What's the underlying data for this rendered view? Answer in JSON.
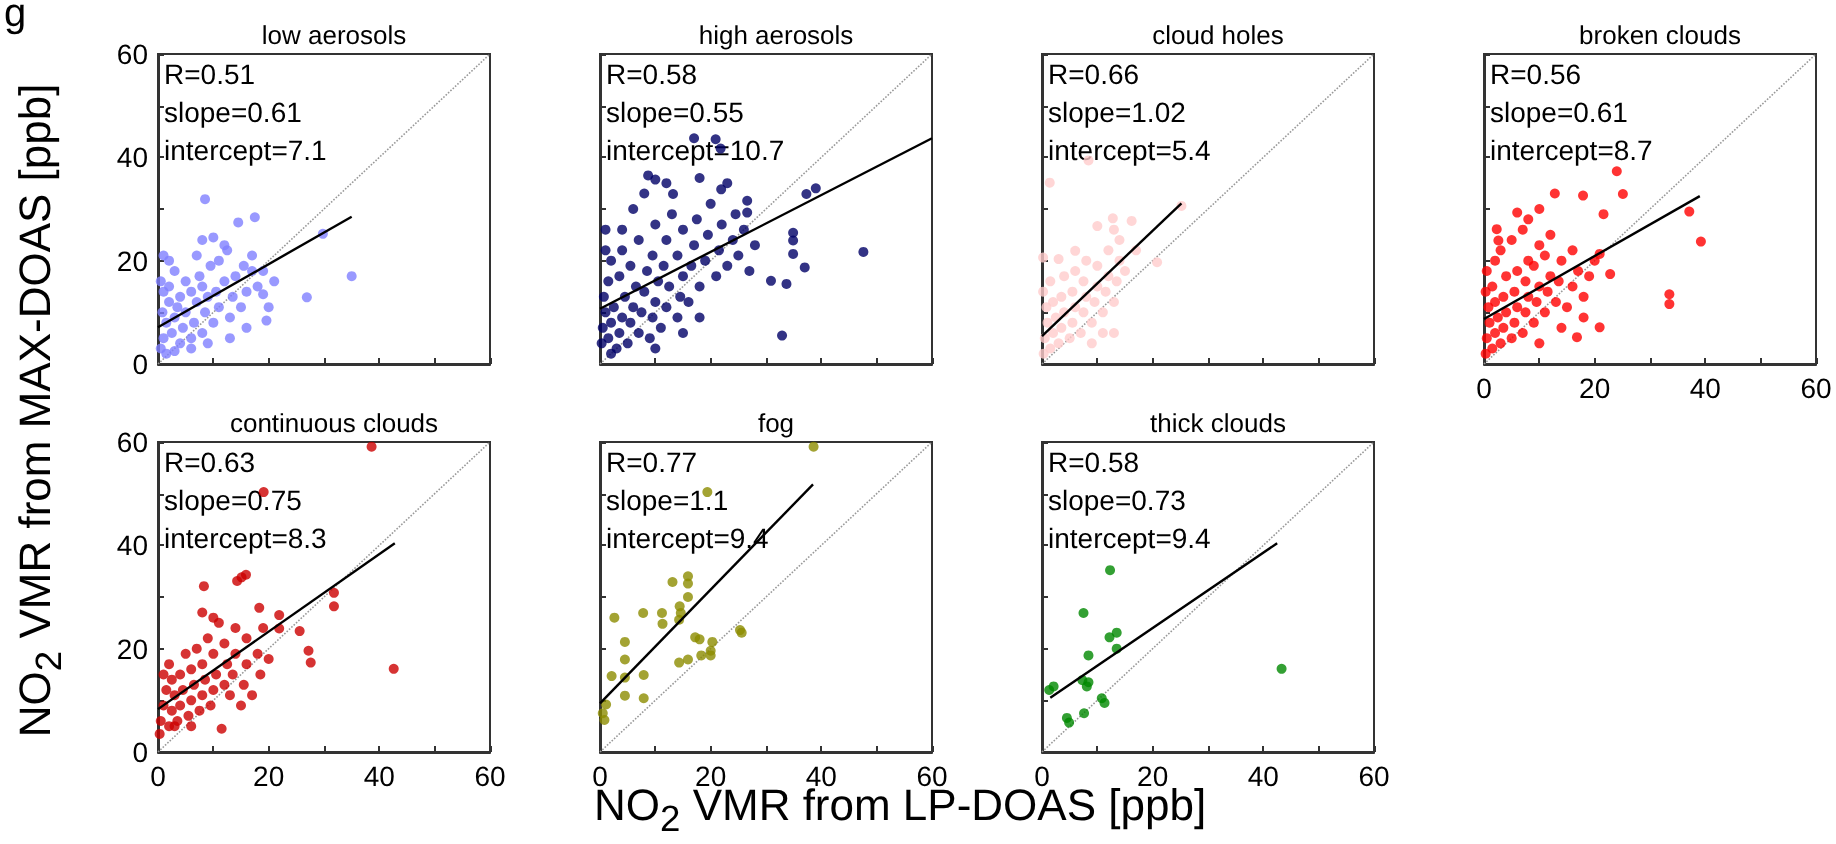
{
  "chart_data": [
    {
      "type": "scatter",
      "title": "low aerosols",
      "ylabel": "NO$_{2}$ VMR from MAX-DOAS [ppb]",
      "annotations": [
        "R=0.51",
        "slope=0.61",
        "intercept=7.1",
        "g"
      ],
      "xlim": [
        0,
        60
      ],
      "ylim": [
        0,
        60
      ],
      "xticks": [
        0,
        {
          "value": 10,
          "label": null
        },
        20,
        {
          "value": 30,
          "label": null
        },
        40,
        {
          "value": 50,
          "label": null
        },
        60
      ],
      "yticks": [
        0,
        {
          "value": 10,
          "label": null
        },
        20,
        {
          "value": 30,
          "label": null
        },
        40,
        {
          "value": 50,
          "label": null
        },
        60
      ],
      "tick_labels": "y",
      "marker": "circle",
      "series": [
        {
          "color": "#8080ff",
          "x": [
            0.5,
            1,
            1.5,
            0.8,
            2,
            1,
            0.5,
            2.5,
            3,
            3.5,
            2,
            4,
            4.5,
            5,
            4,
            5,
            3,
            6,
            6.5,
            7,
            6,
            7.5,
            8,
            8.5,
            9,
            8,
            9.5,
            10,
            11,
            10.5,
            12,
            11,
            13,
            13.5,
            14,
            12.5,
            15,
            16,
            15.5,
            16,
            17,
            18,
            19,
            2,
            1,
            8,
            10,
            8.5,
            14.5,
            17.5,
            29.8,
            35,
            26.9,
            19.6,
            19,
            17,
            1.5,
            3,
            6,
            12,
            7,
            20,
            21,
            13,
            9
          ],
          "values": [
            3,
            5,
            8,
            10,
            12,
            14,
            16,
            6,
            9,
            11,
            15,
            4,
            7,
            10,
            13,
            16,
            18,
            5,
            8,
            12,
            14,
            17,
            6,
            10,
            13,
            15,
            19,
            8,
            11,
            14,
            16,
            20,
            9,
            13,
            17,
            22,
            11,
            14,
            19,
            7,
            21,
            15,
            18,
            20,
            21,
            24,
            24.5,
            31.9,
            27.4,
            28.4,
            25.2,
            17,
            12.9,
            8.4,
            13.5,
            18,
            2,
            2.5,
            3,
            23,
            21,
            11,
            16,
            5,
            4
          ]
        },
        {
          "type": "line",
          "marker": "none",
          "color": "#000000",
          "x": [
            0,
            35
          ],
          "values": [
            7.1,
            28.5
          ]
        },
        {
          "type": "line",
          "marker": "none",
          "color": "#999999",
          "line_style": "dotted",
          "x": [
            0,
            60
          ],
          "values": [
            0,
            60
          ]
        }
      ]
    },
    {
      "type": "scatter",
      "title": "high aerosols",
      "annotations": [
        "R=0.58",
        "slope=0.55",
        "intercept=10.7"
      ],
      "xlim": [
        0,
        60
      ],
      "ylim": [
        0,
        60
      ],
      "xticks": [
        0,
        {
          "value": 10,
          "label": null
        },
        20,
        {
          "value": 30,
          "label": null
        },
        40,
        {
          "value": 50,
          "label": null
        },
        60
      ],
      "yticks": [
        0,
        {
          "value": 10,
          "label": null
        },
        20,
        {
          "value": 30,
          "label": null
        },
        40,
        {
          "value": 50,
          "label": null
        },
        60
      ],
      "tick_labels": false,
      "marker": "circle",
      "series": [
        {
          "color": "#000066",
          "x": [
            0.3,
            0.5,
            1,
            0.7,
            1.5,
            2,
            2.5,
            1.5,
            2,
            1,
            3,
            3.5,
            4,
            4.5,
            3.5,
            4,
            5,
            5.5,
            6,
            6.5,
            5.5,
            7,
            7.5,
            8,
            8.5,
            7,
            9,
            9.5,
            10,
            10.5,
            9.5,
            10,
            11,
            12,
            12.5,
            11.5,
            12,
            13,
            14,
            14.5,
            15,
            14,
            15,
            16,
            16.5,
            17,
            17.5,
            18,
            19,
            19.5,
            20,
            21,
            21.5,
            22,
            23,
            24,
            24.5,
            25,
            26,
            27,
            28,
            6,
            8,
            18,
            21.9,
            20.9,
            21.8,
            17,
            8.7,
            10,
            13.2,
            26.6,
            26.6,
            47.6,
            39,
            37.3,
            34.9,
            34.9,
            34.9,
            37,
            30.9,
            33.7,
            32.9,
            2,
            10,
            15,
            18,
            12,
            23,
            4,
            1
          ],
          "values": [
            4,
            7,
            10,
            13,
            5,
            8,
            11,
            16,
            20,
            22,
            3,
            6,
            9,
            13,
            17,
            22,
            4,
            8,
            11,
            15,
            19,
            6,
            10,
            14,
            18,
            24,
            5,
            9,
            12,
            16,
            21,
            27,
            7,
            11,
            15,
            19,
            24,
            29,
            9,
            13,
            17,
            21,
            26,
            12,
            19,
            23,
            28,
            15,
            20,
            25,
            31,
            17,
            22,
            27,
            19,
            24,
            29,
            21,
            26,
            18,
            23,
            30,
            33,
            36,
            33.8,
            43.5,
            41.7,
            43.7,
            36.5,
            35.7,
            32.9,
            31.6,
            29.3,
            21.7,
            34,
            32.9,
            25.4,
            23.9,
            21.3,
            18.7,
            16.1,
            15.5,
            5.5,
            2,
            3,
            6,
            9,
            35,
            35,
            26,
            26
          ]
        },
        {
          "type": "line",
          "marker": "none",
          "color": "#000000",
          "x": [
            0,
            60
          ],
          "values": [
            10.7,
            43.7
          ]
        },
        {
          "type": "line",
          "marker": "none",
          "color": "#999999",
          "line_style": "dotted",
          "x": [
            0,
            60
          ],
          "values": [
            0,
            60
          ]
        }
      ]
    },
    {
      "type": "scatter",
      "title": "cloud holes",
      "annotations": [
        "R=0.66",
        "slope=1.02",
        "intercept=5.4"
      ],
      "xlim": [
        0,
        60
      ],
      "ylim": [
        0,
        60
      ],
      "xticks": [
        0,
        {
          "value": 10,
          "label": null
        },
        20,
        {
          "value": 30,
          "label": null
        },
        40,
        {
          "value": 50,
          "label": null
        },
        60
      ],
      "yticks": [
        0,
        {
          "value": 10,
          "label": null
        },
        20,
        {
          "value": 30,
          "label": null
        },
        40,
        {
          "value": 50,
          "label": null
        },
        60
      ],
      "tick_labels": false,
      "marker": "circle",
      "series": [
        {
          "color": "#ffcccc",
          "x": [
            0.3,
            0.5,
            1,
            0.8,
            0.2,
            1.5,
            2,
            2.5,
            2,
            1.5,
            3,
            3.5,
            4,
            3.5,
            4,
            5,
            5.5,
            6,
            5.5,
            6,
            7,
            7.5,
            8,
            7.5,
            8,
            9,
            9.5,
            10,
            10,
            11,
            11.5,
            12,
            12,
            13,
            13.5,
            14,
            11,
            13,
            9,
            12.8,
            16.2,
            10,
            6,
            3,
            0.2,
            1.4,
            8.4,
            25.2,
            20.8,
            14,
            17,
            15,
            13
          ],
          "values": [
            2,
            5,
            8,
            11,
            14,
            3,
            6,
            9,
            12,
            16,
            4,
            7,
            10,
            13,
            17,
            5,
            8,
            11,
            14,
            18,
            6,
            10,
            13,
            16,
            20,
            8,
            12,
            15,
            19,
            10,
            14,
            17,
            22,
            12,
            16,
            20,
            6,
            6,
            4,
            28.2,
            27.7,
            26.7,
            21.9,
            20.3,
            20.6,
            35.1,
            39.4,
            30.6,
            19.7,
            24,
            22,
            18,
            26
          ]
        },
        {
          "type": "line",
          "marker": "none",
          "color": "#000000",
          "x": [
            0,
            25.2
          ],
          "values": [
            5.4,
            31.1
          ]
        },
        {
          "type": "line",
          "marker": "none",
          "color": "#999999",
          "line_style": "dotted",
          "x": [
            0,
            60
          ],
          "values": [
            0,
            60
          ]
        }
      ]
    },
    {
      "type": "scatter",
      "title": "broken clouds",
      "annotations": [
        "R=0.56",
        "slope=0.61",
        "intercept=8.7"
      ],
      "xlim": [
        0,
        60
      ],
      "ylim": [
        0,
        60
      ],
      "xticks": [
        0,
        {
          "value": 10,
          "label": null
        },
        20,
        {
          "value": 30,
          "label": null
        },
        40,
        {
          "value": 50,
          "label": null
        },
        60
      ],
      "yticks": [
        0,
        {
          "value": 10,
          "label": null
        },
        20,
        {
          "value": 30,
          "label": null
        },
        40,
        {
          "value": 50,
          "label": null
        },
        60
      ],
      "tick_labels": "x",
      "marker": "circle",
      "series": [
        {
          "color": "#ff0000",
          "x": [
            0.3,
            0.5,
            1,
            0.8,
            0.3,
            0.5,
            1.5,
            2,
            2.5,
            2,
            1.5,
            2,
            3,
            3.5,
            4,
            3.5,
            4,
            3,
            5,
            5.5,
            6,
            5.5,
            6,
            5,
            7,
            7.5,
            8,
            7.5,
            8,
            7,
            9,
            9.5,
            10,
            9,
            10,
            11,
            11.5,
            12,
            11,
            12,
            13,
            13.5,
            14,
            15,
            16,
            16,
            17,
            18,
            19,
            20,
            10,
            14,
            18,
            24,
            25.1,
            12.8,
            17.9,
            21.6,
            6,
            37.1,
            39.2,
            33.5,
            33.5,
            20.9,
            16.8,
            22.8,
            20.9,
            2.3,
            2.6,
            8,
            10
          ],
          "values": [
            2,
            5,
            8,
            11,
            14,
            18,
            3,
            6,
            9,
            12,
            15,
            20,
            4,
            7,
            10,
            13,
            17,
            22,
            5,
            8,
            11,
            14,
            18,
            24,
            6,
            10,
            13,
            16,
            20,
            26,
            8,
            12,
            15,
            19,
            23,
            10,
            14,
            17,
            21,
            25,
            12,
            16,
            20,
            11,
            15,
            22,
            18,
            13,
            17,
            20,
            4,
            7,
            9,
            37.3,
            32.9,
            33,
            32.6,
            29,
            29.3,
            29.5,
            23.7,
            13.5,
            11.6,
            7.1,
            5.2,
            17.4,
            21.3,
            26.1,
            23.9,
            28,
            30
          ]
        },
        {
          "type": "line",
          "marker": "none",
          "color": "#000000",
          "x": [
            0,
            39
          ],
          "values": [
            8.7,
            32.5
          ]
        },
        {
          "type": "line",
          "marker": "none",
          "color": "#999999",
          "line_style": "dotted",
          "x": [
            0,
            60
          ],
          "values": [
            0,
            60
          ]
        }
      ]
    },
    {
      "type": "scatter",
      "title": "continuous clouds",
      "annotations": [
        "R=0.63",
        "slope=0.75",
        "intercept=8.3"
      ],
      "xlim": [
        0,
        60
      ],
      "ylim": [
        0,
        60
      ],
      "xticks": [
        0,
        {
          "value": 10,
          "label": null
        },
        20,
        {
          "value": 30,
          "label": null
        },
        40,
        {
          "value": 50,
          "label": null
        },
        60
      ],
      "yticks": [
        0,
        {
          "value": 10,
          "label": null
        },
        20,
        {
          "value": 30,
          "label": null
        },
        40,
        {
          "value": 50,
          "label": null
        },
        60
      ],
      "marker": "circle",
      "series": [
        {
          "color": "#cc0000",
          "x": [
            0.3,
            0.5,
            1,
            1.5,
            1,
            2,
            2.5,
            3,
            2.5,
            2,
            3.5,
            4,
            4.5,
            4,
            5,
            5.5,
            6,
            6.5,
            6,
            7,
            7.5,
            8,
            8.5,
            8,
            9,
            9.5,
            10,
            10.5,
            10,
            11,
            11.5,
            12,
            12.5,
            12,
            13,
            13.5,
            14,
            14,
            15,
            15.5,
            16,
            16,
            17,
            18,
            18.5,
            19,
            20,
            8,
            10,
            38.6,
            19.1,
            42.6,
            31.8,
            31.8,
            27.6,
            27.2,
            25.6,
            21.9,
            21.9,
            15.1,
            15.9,
            14.3,
            8.3,
            18.3,
            3,
            6
          ],
          "values": [
            3.5,
            6,
            9,
            12,
            15,
            5,
            8,
            11,
            14,
            17,
            6,
            9,
            12,
            15,
            19,
            7,
            10,
            13,
            16,
            20,
            8,
            11,
            14,
            17,
            22,
            9,
            12,
            15,
            19,
            25,
            4.5,
            13,
            17,
            21,
            11,
            15,
            19,
            24,
            9,
            13,
            17,
            22,
            11,
            19,
            15,
            24,
            18,
            27,
            26,
            59.1,
            50.3,
            16.1,
            30.8,
            28.2,
            17.3,
            19.6,
            23.4,
            26.5,
            23.9,
            33.8,
            34.3,
            33.1,
            32.1,
            27.9,
            5,
            5
          ]
        },
        {
          "type": "line",
          "marker": "none",
          "color": "#000000",
          "x": [
            0,
            42.8
          ],
          "values": [
            8.3,
            40.4
          ]
        },
        {
          "type": "line",
          "marker": "none",
          "color": "#999999",
          "line_style": "dotted",
          "x": [
            0,
            60
          ],
          "values": [
            0,
            60
          ]
        }
      ]
    },
    {
      "type": "scatter",
      "title": "fog",
      "xlabel": "NO$_{2}$ VMR from LP-DOAS [ppb]",
      "annotations": [
        "R=0.77",
        "slope=1.1",
        "intercept=9.4"
      ],
      "xlim": [
        0,
        60
      ],
      "ylim": [
        0,
        60
      ],
      "xticks": [
        0,
        {
          "value": 10,
          "label": null
        },
        20,
        {
          "value": 30,
          "label": null
        },
        40,
        {
          "value": 50,
          "label": null
        },
        60
      ],
      "yticks": [
        0,
        {
          "value": 10,
          "label": null
        },
        20,
        {
          "value": 30,
          "label": null
        },
        40,
        {
          "value": 50,
          "label": null
        },
        60
      ],
      "tick_labels": "x",
      "marker": "circle",
      "series": [
        {
          "color": "#8c8c00",
          "x": [
            38.6,
            19.4,
            13.1,
            15.9,
            15.9,
            15.9,
            14.4,
            14.6,
            14.3,
            11.2,
            11.3,
            7.8,
            2.6,
            4.5,
            4.5,
            2.1,
            4.5,
            4.5,
            7.9,
            7.9,
            14.3,
            17.2,
            18,
            18.3,
            20.3,
            20,
            20,
            25.3,
            25.6,
            0.5,
            0.8,
            1.1,
            15.9
          ],
          "values": [
            59.1,
            50.3,
            32.9,
            34,
            32.6,
            30,
            28.2,
            26.9,
            25.6,
            26.9,
            24.8,
            26.9,
            26,
            21.3,
            17.9,
            14.7,
            14.4,
            10.9,
            14.9,
            10.4,
            17.3,
            22.2,
            21.8,
            18.7,
            21.3,
            19.6,
            18.7,
            23.6,
            23.1,
            7.5,
            6.2,
            9.2,
            17.9
          ]
        },
        {
          "type": "line",
          "marker": "none",
          "color": "#000000",
          "x": [
            0,
            38.5
          ],
          "values": [
            9.4,
            51.8
          ]
        },
        {
          "type": "line",
          "marker": "none",
          "color": "#999999",
          "line_style": "dotted",
          "x": [
            0,
            60
          ],
          "values": [
            0,
            60
          ]
        }
      ]
    },
    {
      "type": "scatter",
      "title": "thick clouds",
      "annotations": [
        "R=0.58",
        "slope=0.73",
        "intercept=9.4"
      ],
      "xlim": [
        0,
        60
      ],
      "ylim": [
        0,
        60
      ],
      "xticks": [
        0,
        {
          "value": 10,
          "label": null
        },
        20,
        {
          "value": 30,
          "label": null
        },
        40,
        {
          "value": 50,
          "label": null
        },
        60
      ],
      "yticks": [
        0,
        {
          "value": 10,
          "label": null
        },
        20,
        {
          "value": 30,
          "label": null
        },
        40,
        {
          "value": 50,
          "label": null
        },
        60
      ],
      "tick_labels": "x",
      "marker": "circle",
      "series": [
        {
          "color": "#008800",
          "x": [
            12.3,
            7.5,
            12.2,
            13.5,
            13.5,
            8.4,
            1.3,
            2.1,
            7.3,
            8.4,
            8.1,
            10.8,
            11.3,
            7.6,
            4.5,
            4.9,
            43.3
          ],
          "values": [
            35.2,
            26.9,
            22.2,
            23.1,
            20,
            18.7,
            12,
            12.7,
            13.9,
            13.5,
            12.7,
            10.4,
            9.5,
            7.5,
            6.6,
            5.7,
            16.1
          ]
        },
        {
          "type": "line",
          "marker": "none",
          "color": "#000000",
          "x": [
            1.5,
            42.5
          ],
          "values": [
            10.5,
            40.4
          ]
        },
        {
          "type": "line",
          "marker": "none",
          "color": "#999999",
          "line_style": "dotted",
          "x": [
            0,
            60
          ],
          "values": [
            0,
            60
          ]
        }
      ]
    }
  ]
}
